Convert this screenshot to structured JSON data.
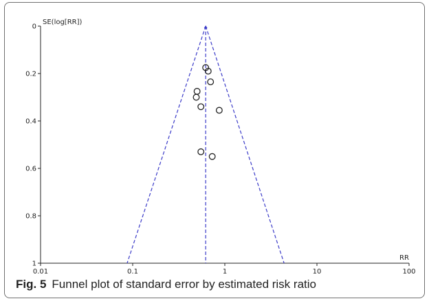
{
  "chart_data": {
    "type": "scatter",
    "title": "",
    "xlabel": "RR",
    "ylabel": "SE(log[RR])",
    "x_scale": "log",
    "y_inverted": true,
    "xlim": [
      0.01,
      100
    ],
    "ylim": [
      0,
      1
    ],
    "x_ticks": [
      {
        "value": 0.01,
        "label": "0.01"
      },
      {
        "value": 0.1,
        "label": "0.1"
      },
      {
        "value": 1,
        "label": "1"
      },
      {
        "value": 10,
        "label": "10"
      },
      {
        "value": 100,
        "label": "100"
      }
    ],
    "y_ticks": [
      {
        "value": 0,
        "label": "0"
      },
      {
        "value": 0.2,
        "label": "0.2"
      },
      {
        "value": 0.4,
        "label": "0.4"
      },
      {
        "value": 0.6,
        "label": "0.6"
      },
      {
        "value": 0.8,
        "label": "0.8"
      },
      {
        "value": 1,
        "label": "1"
      }
    ],
    "grid": false,
    "pooled_estimate": 0.62,
    "funnel": {
      "apex": [
        0.62,
        0
      ],
      "left_base": [
        0.087,
        1
      ],
      "right_base": [
        4.4,
        1
      ]
    },
    "points": [
      {
        "x": 0.62,
        "y": 0.175
      },
      {
        "x": 0.66,
        "y": 0.19
      },
      {
        "x": 0.7,
        "y": 0.235
      },
      {
        "x": 0.5,
        "y": 0.275
      },
      {
        "x": 0.49,
        "y": 0.3
      },
      {
        "x": 0.55,
        "y": 0.34
      },
      {
        "x": 0.87,
        "y": 0.355
      },
      {
        "x": 0.55,
        "y": 0.53
      },
      {
        "x": 0.73,
        "y": 0.55
      }
    ],
    "colors": {
      "funnel": "#3a3ac8",
      "points": "#222222",
      "axis": "#222222"
    }
  },
  "caption": {
    "label": "Fig. 5",
    "text": "Funnel plot of standard error by estimated risk ratio"
  }
}
